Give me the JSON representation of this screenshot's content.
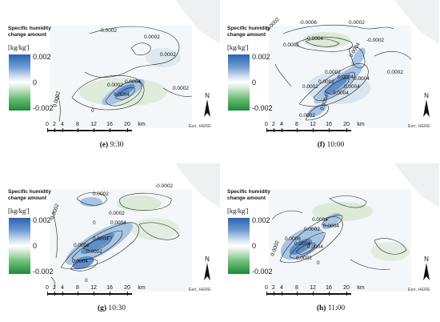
{
  "legend": {
    "title_line1": "Specific humidity",
    "title_line2": "change amount",
    "unit": "[kg/kg']",
    "max_label": "0.002",
    "mid_label": "0",
    "min_label": "-0.002"
  },
  "scale_bar": {
    "ticks": [
      "0",
      "2",
      "4",
      "8",
      "12",
      "16",
      "20"
    ],
    "unit": "km"
  },
  "north_label": "N",
  "attribution": "Esri, HERE",
  "panels": [
    {
      "letter": "(e)",
      "time": "9:30",
      "contour_labels": [
        "-0.0002",
        "0.0002",
        "0.0002",
        "0.0002",
        "0.0004",
        "0.0004",
        "0.0002",
        "0.0002",
        "0"
      ]
    },
    {
      "letter": "(f)",
      "time": "10:00",
      "contour_labels": [
        "-0.0002",
        "-0.0006",
        "-0.0004",
        "0.0002",
        "0.0002",
        "-0.0002",
        "0.0004",
        "0.0002",
        "0.0004",
        "0.0002",
        "0.0002",
        "0.0004",
        "0.0004",
        "0.0004",
        "0.0004",
        "0.0002",
        "0.0002"
      ]
    },
    {
      "letter": "(g)",
      "time": "10:30",
      "contour_labels": [
        "-0.0002",
        "0.0002",
        "-0.0002",
        "0.0002",
        "0.0004",
        "0",
        "0.0004",
        "0.0002",
        "0.0002",
        "0.0004",
        "0"
      ]
    },
    {
      "letter": "(h)",
      "time": "11:00",
      "contour_labels": [
        "0.0006",
        "0.0004",
        "0.0002",
        "0.0004",
        "0.0002",
        "0.0004",
        "0.0004",
        "0.0002",
        "0"
      ]
    }
  ]
}
